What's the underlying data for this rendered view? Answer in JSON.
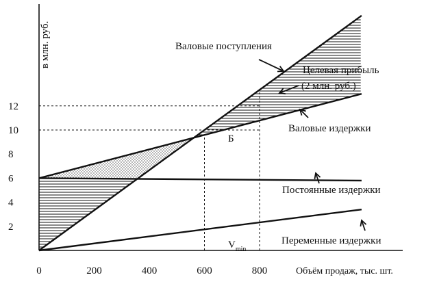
{
  "chart_data": {
    "type": "line",
    "ylabel": "в млн. руб.",
    "xlabel": "Объём продаж, тыс. шт.",
    "x_ticks": [
      "0",
      "200",
      "400",
      "600",
      "800"
    ],
    "y_ticks": [
      "2",
      "4",
      "6",
      "8",
      "10",
      "12"
    ],
    "xlim": [
      0,
      1170
    ],
    "ylim": [
      0,
      19
    ],
    "series": [
      {
        "name": "Валовые поступления",
        "x": [
          0,
          1170
        ],
        "y": [
          0,
          19.5
        ],
        "color": "#111111"
      },
      {
        "name": "Валовые издержки",
        "x": [
          0,
          1170
        ],
        "y": [
          6.0,
          13.0
        ],
        "color": "#111111"
      },
      {
        "name": "Постоянные издержки",
        "x": [
          0,
          1170
        ],
        "y": [
          6.0,
          5.8
        ],
        "color": "#111111"
      },
      {
        "name": "Переменные издержки",
        "x": [
          0,
          1170
        ],
        "y": [
          0,
          3.4
        ],
        "color": "#111111"
      }
    ],
    "guides": {
      "break_even_x": 600,
      "target_x": 800,
      "y_levels": [
        10,
        12
      ]
    },
    "annotations": {
      "revenue": "Валовые поступления",
      "target_line1": "Целевая прибыль",
      "target_line2": "(2 млн. руб.)",
      "total_costs": "Валовые издержки",
      "break_even": "Б",
      "fixed_costs": "Постоянные издержки",
      "variable_costs": "Переменные издержки",
      "vmin": "V",
      "vmin_sub": "min"
    }
  }
}
